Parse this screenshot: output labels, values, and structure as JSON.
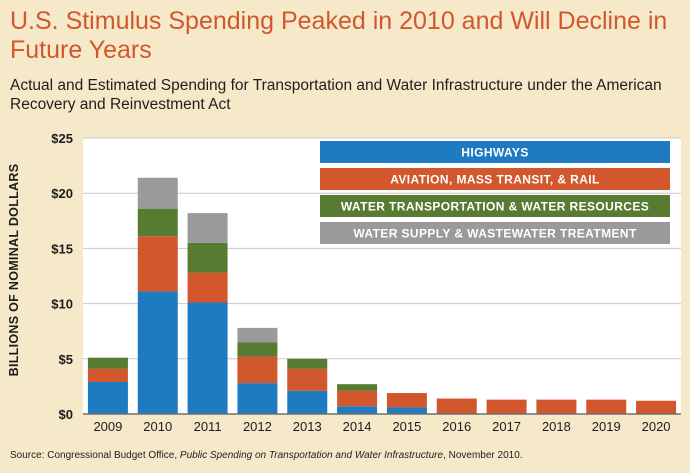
{
  "colors": {
    "background": "#f6e9c9",
    "title": "#d2572d",
    "highways": "#1e7bc2",
    "aviation": "#d2572d",
    "water_transport": "#587b32",
    "water_supply": "#9a9a9a"
  },
  "chart_data": {
    "type": "bar",
    "stacked": true,
    "title": "U.S. Stimulus Spending Peaked in 2010 and Will Decline in Future Years",
    "subtitle": "Actual and Estimated Spending for Transportation and Water Infrastructure under the American Recovery and Reinvestment Act",
    "xlabel": "",
    "ylabel": "BILLIONS OF NOMINAL DOLLARS",
    "ylim": [
      0,
      25
    ],
    "yticks": [
      "$0",
      "$5",
      "$10",
      "$15",
      "$20",
      "$25"
    ],
    "ytick_values": [
      0,
      5,
      10,
      15,
      20,
      25
    ],
    "grid": true,
    "legend_position": "top-right",
    "categories": [
      "2009",
      "2010",
      "2011",
      "2012",
      "2013",
      "2014",
      "2015",
      "2016",
      "2017",
      "2018",
      "2019",
      "2020"
    ],
    "series": [
      {
        "name": "HIGHWAYS",
        "color": "#1e7bc2",
        "values": [
          2.9,
          11.1,
          10.1,
          2.8,
          2.1,
          0.7,
          0.6,
          0,
          0,
          0,
          0,
          0
        ]
      },
      {
        "name": "AVIATION, MASS TRANSIT, & RAIL",
        "color": "#d2572d",
        "values": [
          1.2,
          5.0,
          2.7,
          2.4,
          2.0,
          1.4,
          1.3,
          1.4,
          1.3,
          1.3,
          1.3,
          1.2
        ]
      },
      {
        "name": "WATER TRANSPORTATION & WATER RESOURCES",
        "color": "#587b32",
        "values": [
          1.0,
          2.5,
          2.7,
          1.3,
          0.9,
          0.6,
          0,
          0,
          0,
          0,
          0,
          0
        ]
      },
      {
        "name": "WATER SUPPLY & WASTEWATER TREATMENT",
        "color": "#9a9a9a",
        "values": [
          0,
          2.8,
          2.7,
          1.3,
          0,
          0,
          0,
          0,
          0,
          0,
          0,
          0
        ]
      }
    ]
  },
  "source": {
    "prefix": "Source: Congressional Budget Office, ",
    "italic": "Public Spending on Transportation and Water Infrastructure",
    "suffix": ", November 2010."
  }
}
